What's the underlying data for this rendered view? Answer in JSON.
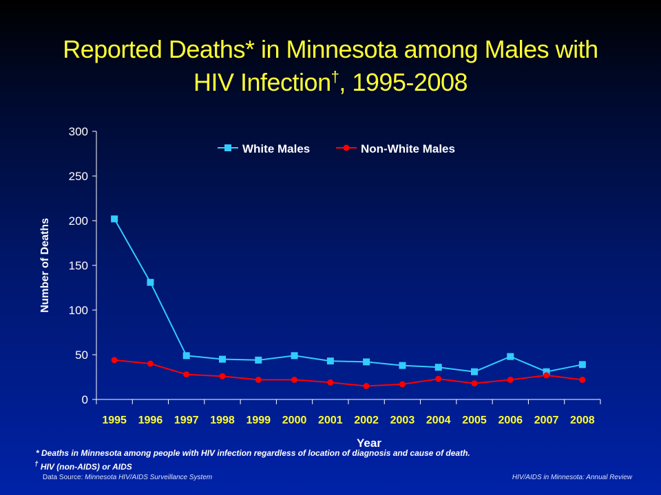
{
  "slide": {
    "title_main": "Reported Deaths* in Minnesota among Males with HIV Infection",
    "title_dagger": "†",
    "title_years": ", 1995-2008",
    "footnote_star": "* Deaths in Minnesota among people with HIV infection regardless of location of diagnosis and cause of death.",
    "footnote_dagger_mark": "†",
    "footnote_dagger": "HIV (non-AIDS) or AIDS",
    "source_label": "Data Source:",
    "source_text": "Minnesota HIV/AIDS Surveillance System",
    "report_text": "HIV/AIDS in Minnesota: Annual Review"
  },
  "chart_data": {
    "type": "line",
    "xlabel": "Year",
    "ylabel": "Number of Deaths",
    "categories": [
      "1995",
      "1996",
      "1997",
      "1998",
      "1999",
      "2000",
      "2001",
      "2002",
      "2003",
      "2004",
      "2005",
      "2006",
      "2007",
      "2008"
    ],
    "ylim": [
      0,
      300
    ],
    "yticks": [
      0,
      50,
      100,
      150,
      200,
      250,
      300
    ],
    "legend_position": "top",
    "grid": false,
    "series": [
      {
        "name": "White Males",
        "color": "#33ccff",
        "marker": "square",
        "values": [
          202,
          131,
          49,
          45,
          44,
          49,
          43,
          42,
          38,
          36,
          31,
          48,
          31,
          39
        ]
      },
      {
        "name": "Non-White Males",
        "color": "#ff0000",
        "marker": "circle",
        "values": [
          44,
          40,
          28,
          26,
          22,
          22,
          19,
          15,
          17,
          23,
          18,
          22,
          27,
          22
        ]
      }
    ]
  }
}
